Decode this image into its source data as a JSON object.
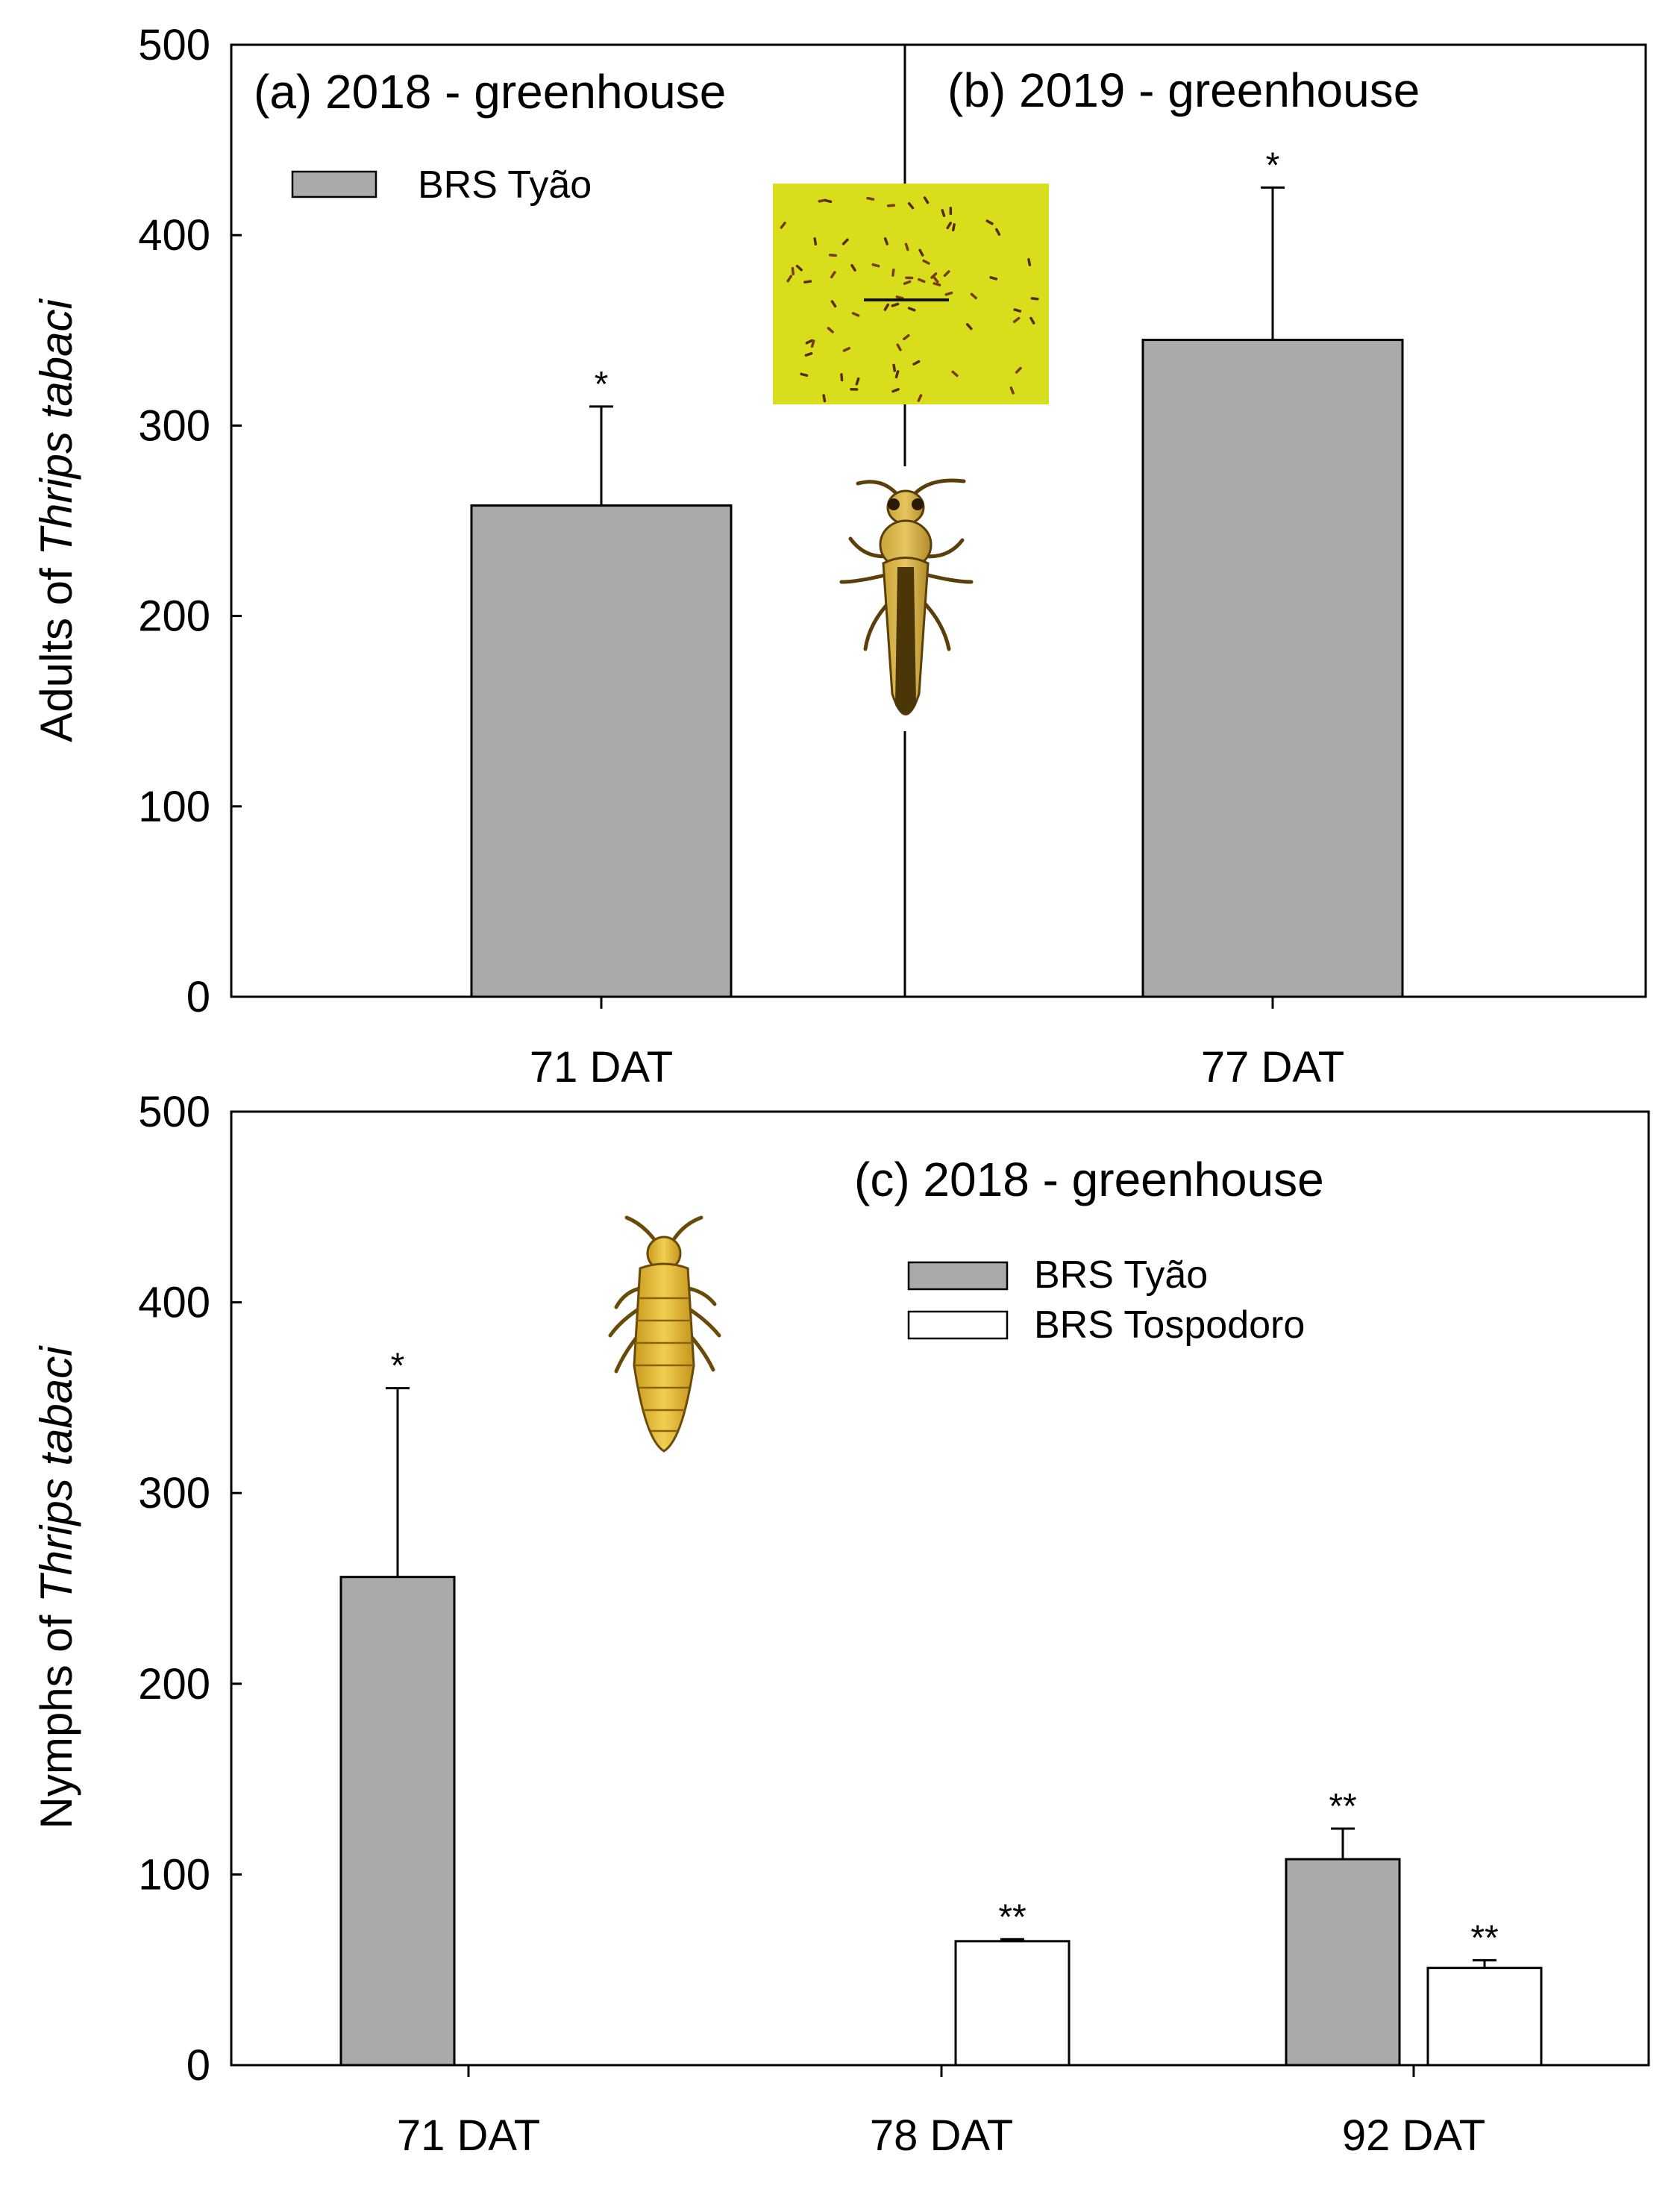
{
  "colors": {
    "tyao_fill": "#aaaaaa",
    "tospodoro_fill": "#ffffff",
    "stroke": "#000000",
    "sticky_trap": "#d8de1c"
  },
  "chart_data": [
    {
      "id": "adults",
      "type": "bar",
      "panels": [
        "(a) 2018 - greenhouse",
        "(b) 2019 - greenhouse"
      ],
      "categories": [
        "71 DAT",
        "77 DAT"
      ],
      "series": [
        {
          "name": "BRS Tyão",
          "values": [
            258,
            345
          ],
          "errors": [
            52,
            80
          ],
          "significance": [
            "*",
            "*"
          ]
        }
      ],
      "ylabel_prefix": "Adults of ",
      "ylabel_italic": "Thrips tabaci",
      "ylim": [
        0,
        500
      ],
      "yticks": [
        "0",
        "100",
        "200",
        "300",
        "400",
        "500"
      ],
      "legend": {
        "entries": [
          "BRS Tyão"
        ],
        "position": "top-left"
      }
    },
    {
      "id": "nymphs",
      "type": "bar",
      "panels": [
        "(c) 2018 - greenhouse"
      ],
      "categories": [
        "71 DAT",
        "78 DAT",
        "92 DAT"
      ],
      "series": [
        {
          "name": "BRS Tyão",
          "values": [
            256,
            null,
            108
          ],
          "errors": [
            99,
            null,
            16
          ],
          "significance": [
            "*",
            "",
            "**"
          ]
        },
        {
          "name": "BRS Tospodoro",
          "values": [
            null,
            65,
            51
          ],
          "errors": [
            null,
            1,
            4
          ],
          "significance": [
            "",
            "**",
            "**"
          ]
        }
      ],
      "ylabel_prefix": "Nymphs of ",
      "ylabel_italic": "Thrips tabaci",
      "ylim": [
        0,
        500
      ],
      "yticks": [
        "0",
        "100",
        "200",
        "300",
        "400",
        "500"
      ],
      "legend": {
        "entries": [
          "BRS Tyão",
          "BRS Tospodoro"
        ],
        "position": "top-right"
      }
    }
  ]
}
